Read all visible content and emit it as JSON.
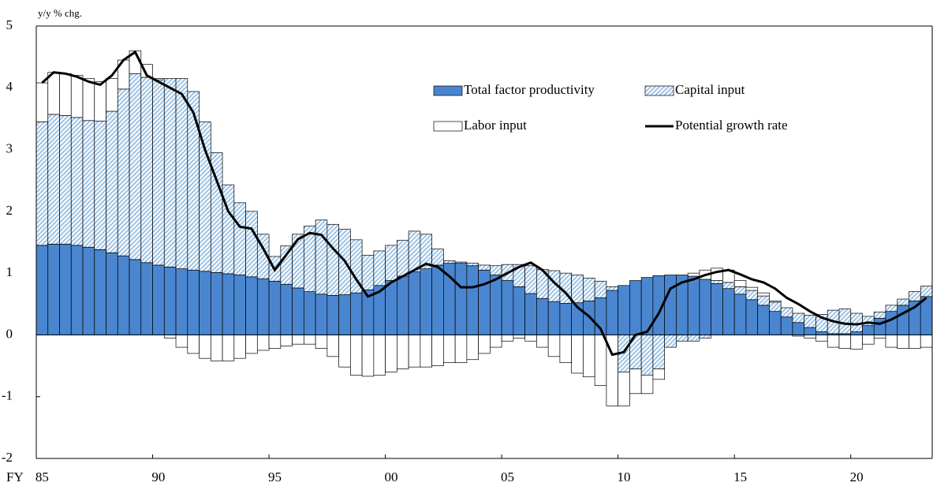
{
  "chart_data": {
    "type": "bar",
    "stacked": true,
    "y_label": "y/y % chg.",
    "x_label": "FY",
    "categories": [
      "85",
      null,
      null,
      null,
      null,
      null,
      null,
      null,
      null,
      null,
      "90",
      null,
      null,
      null,
      null,
      null,
      null,
      null,
      null,
      null,
      "95",
      null,
      null,
      null,
      null,
      null,
      null,
      null,
      null,
      null,
      "00",
      null,
      null,
      null,
      null,
      null,
      null,
      null,
      null,
      null,
      "05",
      null,
      null,
      null,
      null,
      null,
      null,
      null,
      null,
      null,
      "10",
      null,
      null,
      null,
      null,
      null,
      null,
      null,
      null,
      null,
      "15",
      null,
      null,
      null,
      null,
      null,
      null,
      null,
      null,
      null,
      "20",
      null,
      null,
      null,
      null,
      null,
      null
    ],
    "ylim": [
      -2,
      5
    ],
    "yticks": [
      -2,
      -1,
      0,
      1,
      2,
      3,
      4,
      5
    ],
    "series": [
      {
        "name": "Total factor productivity",
        "type": "bar",
        "color": "#4a86d0",
        "values": [
          1.45,
          1.47,
          1.47,
          1.45,
          1.42,
          1.38,
          1.33,
          1.28,
          1.22,
          1.17,
          1.13,
          1.1,
          1.07,
          1.05,
          1.03,
          1.01,
          0.99,
          0.97,
          0.94,
          0.91,
          0.87,
          0.82,
          0.76,
          0.7,
          0.66,
          0.64,
          0.65,
          0.68,
          0.73,
          0.8,
          0.88,
          0.95,
          1.02,
          1.07,
          1.13,
          1.16,
          1.16,
          1.12,
          1.05,
          0.97,
          0.88,
          0.78,
          0.67,
          0.59,
          0.54,
          0.51,
          0.52,
          0.55,
          0.6,
          0.72,
          0.8,
          0.88,
          0.93,
          0.96,
          0.97,
          0.97,
          0.95,
          0.9,
          0.83,
          0.75,
          0.66,
          0.57,
          0.48,
          0.38,
          0.29,
          0.2,
          0.12,
          0.05,
          0.02,
          0.02,
          0.05,
          0.15,
          0.27,
          0.38,
          0.48,
          0.55,
          0.62
        ]
      },
      {
        "name": "Capital input",
        "type": "bar",
        "color": "#9dc3e6",
        "hatch": true,
        "values": [
          2.0,
          2.1,
          2.08,
          2.07,
          2.05,
          2.08,
          2.29,
          2.7,
          3.01,
          3.0,
          3.0,
          3.05,
          3.08,
          2.89,
          2.42,
          1.94,
          1.44,
          1.17,
          1.06,
          0.72,
          0.4,
          0.62,
          0.87,
          1.06,
          1.2,
          1.15,
          1.06,
          0.86,
          0.56,
          0.56,
          0.57,
          0.58,
          0.66,
          0.56,
          0.26,
          0.04,
          0.02,
          0.04,
          0.08,
          0.15,
          0.26,
          0.36,
          0.45,
          0.47,
          0.5,
          0.49,
          0.45,
          0.37,
          0.27,
          0.06,
          -0.6,
          -0.55,
          -0.65,
          -0.55,
          -0.2,
          -0.1,
          -0.1,
          -0.05,
          0.05,
          0.1,
          0.12,
          0.15,
          0.15,
          0.15,
          0.15,
          0.15,
          0.2,
          0.28,
          0.38,
          0.4,
          0.3,
          0.15,
          0.1,
          0.1,
          0.1,
          0.15,
          0.17
        ]
      },
      {
        "name": "Labor input",
        "type": "bar",
        "color": "#ffffff",
        "values": [
          0.63,
          0.68,
          0.68,
          0.68,
          0.68,
          0.64,
          0.53,
          0.47,
          0.37,
          0.21,
          0.02,
          -0.05,
          -0.2,
          -0.3,
          -0.38,
          -0.42,
          -0.42,
          -0.38,
          -0.3,
          -0.25,
          -0.22,
          -0.18,
          -0.15,
          -0.15,
          -0.22,
          -0.35,
          -0.52,
          -0.65,
          -0.67,
          -0.65,
          -0.6,
          -0.55,
          -0.52,
          -0.52,
          -0.5,
          -0.45,
          -0.45,
          -0.4,
          -0.3,
          -0.2,
          -0.1,
          -0.05,
          -0.1,
          -0.2,
          -0.35,
          -0.45,
          -0.62,
          -0.68,
          -0.82,
          -1.15,
          -0.55,
          -0.4,
          -0.3,
          -0.17,
          0,
          0,
          0.05,
          0.15,
          0.2,
          0.2,
          0.1,
          0.05,
          0.05,
          0.02,
          0,
          -0.02,
          -0.05,
          -0.1,
          -0.2,
          -0.22,
          -0.23,
          -0.15,
          -0.05,
          -0.2,
          -0.22,
          -0.22,
          -0.2
        ]
      },
      {
        "name": "Potential growth rate",
        "type": "line",
        "color": "#000000",
        "values": [
          4.08,
          4.25,
          4.23,
          4.18,
          4.1,
          4.05,
          4.2,
          4.45,
          4.58,
          4.2,
          4.1,
          4.0,
          3.9,
          3.6,
          3.0,
          2.5,
          2.0,
          1.75,
          1.72,
          1.4,
          1.05,
          1.3,
          1.55,
          1.65,
          1.62,
          1.4,
          1.2,
          0.9,
          0.62,
          0.7,
          0.85,
          0.95,
          1.05,
          1.15,
          1.1,
          0.95,
          0.77,
          0.77,
          0.82,
          0.9,
          1.0,
          1.1,
          1.17,
          1.05,
          0.85,
          0.68,
          0.45,
          0.3,
          0.1,
          -0.32,
          -0.28,
          0.0,
          0.05,
          0.35,
          0.75,
          0.85,
          0.9,
          0.97,
          1.02,
          1.05,
          0.98,
          0.9,
          0.85,
          0.75,
          0.6,
          0.5,
          0.38,
          0.28,
          0.22,
          0.18,
          0.17,
          0.2,
          0.18,
          0.25,
          0.35,
          0.45,
          0.6
        ]
      }
    ]
  }
}
